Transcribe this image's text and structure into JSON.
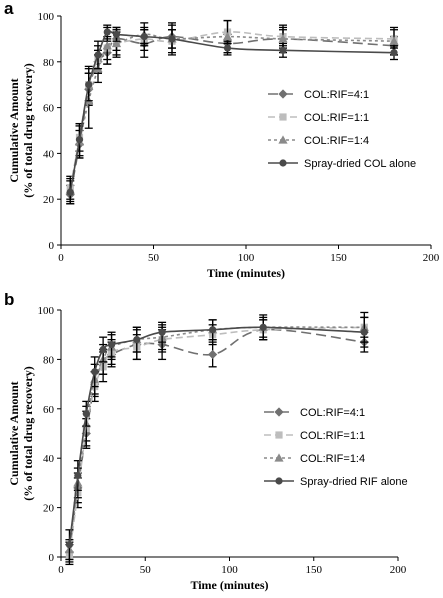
{
  "chart_data": [
    {
      "type": "line",
      "panel_label": "a",
      "xlabel": "Time (minutes)",
      "ylabel_line1": "Cumulative Amount",
      "ylabel_line2": "(% of total drug recovery)",
      "xlim": [
        0,
        200
      ],
      "ylim": [
        0,
        100
      ],
      "xticks": [
        0,
        50,
        100,
        150,
        200
      ],
      "yticks": [
        0,
        20,
        40,
        60,
        80,
        100
      ],
      "grid": false,
      "legend_position": "right",
      "x": [
        5,
        10,
        15,
        20,
        25,
        30,
        45,
        60,
        90,
        120,
        180
      ],
      "series": [
        {
          "name": "COL:RIF=4:1",
          "color": "#707070",
          "dash": "10,5",
          "marker": "diamond",
          "values": [
            22,
            44,
            68,
            80,
            84,
            90,
            88,
            91,
            88,
            90,
            87
          ],
          "errors": [
            4,
            6,
            7,
            5,
            5,
            5,
            6,
            5,
            4,
            4,
            4
          ]
        },
        {
          "name": "COL:RIF=1:1",
          "color": "#bdbdbd",
          "dash": "7,4",
          "marker": "square",
          "values": [
            25,
            47,
            70,
            81,
            86,
            88,
            90,
            89,
            93,
            91,
            90
          ],
          "errors": [
            5,
            6,
            8,
            6,
            5,
            5,
            5,
            5,
            5,
            4,
            4
          ]
        },
        {
          "name": "COL:RIF=1:4",
          "color": "#8a8a8a",
          "dash": "3,3",
          "marker": "triangle",
          "values": [
            24,
            45,
            63,
            77,
            87,
            88,
            92,
            90,
            91,
            90,
            89
          ],
          "errors": [
            5,
            7,
            12,
            6,
            8,
            6,
            5,
            7,
            7,
            6,
            6
          ]
        },
        {
          "name": "Spray-dried COL alone",
          "color": "#4a4a4a",
          "dash": "",
          "marker": "circle",
          "values": [
            23,
            46,
            70,
            83,
            93,
            92,
            91,
            90,
            86,
            85,
            84
          ],
          "errors": [
            5,
            7,
            7,
            6,
            3,
            3,
            3,
            4,
            3,
            3,
            3
          ]
        }
      ]
    },
    {
      "type": "line",
      "panel_label": "b",
      "xlabel": "Time (minutes)",
      "ylabel_line1": "Cumulative Amount",
      "ylabel_line2": "(% of total drug recovery)",
      "xlim": [
        0,
        200
      ],
      "ylim": [
        0,
        100
      ],
      "xticks": [
        0,
        50,
        100,
        150,
        200
      ],
      "yticks": [
        0,
        20,
        40,
        60,
        80,
        100
      ],
      "grid": false,
      "legend_position": "right",
      "x": [
        5,
        10,
        15,
        20,
        25,
        30,
        45,
        60,
        90,
        120,
        180
      ],
      "series": [
        {
          "name": "COL:RIF=4:1",
          "color": "#707070",
          "dash": "10,5",
          "marker": "diamond",
          "values": [
            2,
            28,
            50,
            70,
            79,
            82,
            86,
            86,
            82,
            92,
            87
          ],
          "errors": [
            4,
            6,
            6,
            5,
            5,
            5,
            6,
            6,
            5,
            4,
            4
          ]
        },
        {
          "name": "COL:RIF=1:1",
          "color": "#bdbdbd",
          "dash": "7,4",
          "marker": "square",
          "values": [
            1,
            26,
            52,
            69,
            77,
            83,
            85,
            88,
            90,
            92,
            93
          ],
          "errors": [
            4,
            6,
            7,
            6,
            6,
            5,
            5,
            5,
            4,
            4,
            6
          ]
        },
        {
          "name": "COL:RIF=1:4",
          "color": "#8a8a8a",
          "dash": "3,3",
          "marker": "triangle",
          "values": [
            3,
            30,
            54,
            72,
            80,
            85,
            88,
            89,
            92,
            93,
            93
          ],
          "errors": [
            4,
            6,
            7,
            6,
            6,
            5,
            5,
            5,
            4,
            4,
            4
          ]
        },
        {
          "name": "Spray-dried RIF alone",
          "color": "#4a4a4a",
          "dash": "",
          "marker": "circle",
          "values": [
            5,
            33,
            58,
            75,
            84,
            86,
            88,
            91,
            92,
            93,
            91
          ],
          "errors": [
            6,
            6,
            5,
            6,
            5,
            5,
            5,
            4,
            4,
            5,
            6
          ]
        }
      ]
    }
  ]
}
